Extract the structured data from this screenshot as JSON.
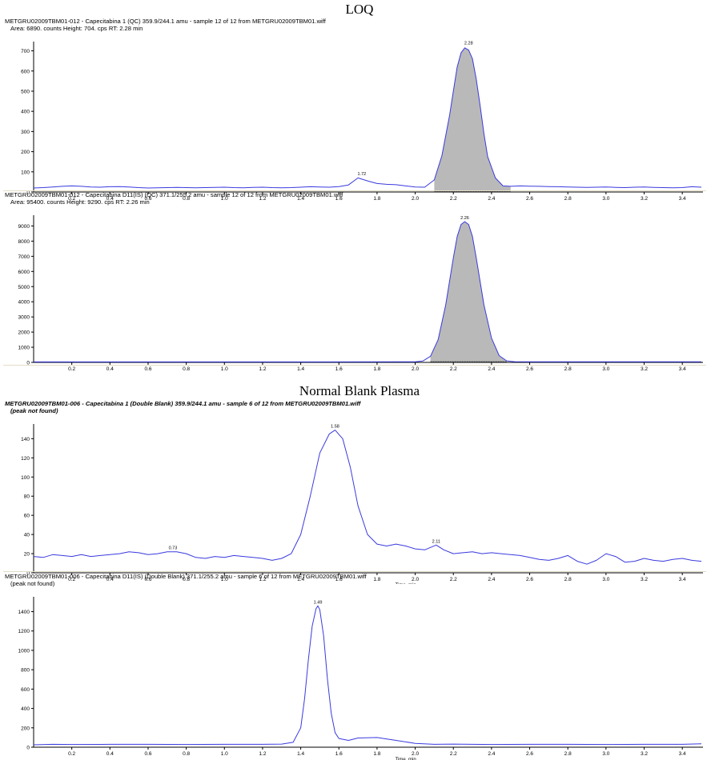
{
  "section_titles": {
    "top": "LOQ",
    "bottom": "Normal Blank Plasma"
  },
  "colors": {
    "trace": "#3a3adf",
    "peak_fill": "#b9b9b9",
    "axis": "#000000",
    "separator": "#e2ddc8"
  },
  "chart_data": [
    {
      "type": "line",
      "title": "METGRU02009TBM01-012 - Capecitabina 1 (QC) 359.9/244.1 amu - sample 12 of 12 from METGRU02009TBM01.wiff",
      "subtitle": "Area: 6890. counts  Height: 704. cps  RT: 2.28 min",
      "xlabel": "Time, min",
      "xlim": [
        0,
        3.5
      ],
      "ylim": [
        0,
        730
      ],
      "xticks": [
        "0.2",
        "0.4",
        "0.6",
        "0.8",
        "1.0",
        "1.2",
        "1.4",
        "1.6",
        "1.8",
        "2.0",
        "2.2",
        "2.4",
        "2.6",
        "2.8",
        "3.0",
        "3.2",
        "3.4"
      ],
      "yticks": [
        "0",
        "100",
        "200",
        "300",
        "400",
        "500",
        "600",
        "700"
      ],
      "peak_labels": [
        {
          "x": 1.72,
          "y": 72,
          "label": "1.72"
        },
        {
          "x": 2.28,
          "y": 720,
          "label": "2.28"
        }
      ],
      "filled_peak": {
        "x_start": 2.08,
        "x_end": 2.5
      },
      "series": [
        {
          "x": [
            0.0,
            0.05,
            0.1,
            0.15,
            0.2,
            0.25,
            0.3,
            0.35,
            0.4,
            0.45,
            0.5,
            0.55,
            0.6,
            0.65,
            0.7,
            0.75,
            0.8,
            0.85,
            0.9,
            0.95,
            1.0,
            1.05,
            1.1,
            1.15,
            1.2,
            1.25,
            1.3,
            1.35,
            1.4,
            1.45,
            1.5,
            1.55,
            1.6,
            1.65,
            1.7,
            1.75,
            1.8,
            1.85,
            1.9,
            1.95,
            2.0,
            2.05,
            2.1,
            2.14,
            2.18,
            2.2,
            2.22,
            2.24,
            2.26,
            2.28,
            2.3,
            2.32,
            2.34,
            2.36,
            2.38,
            2.42,
            2.46,
            2.5,
            2.55,
            2.6,
            2.65,
            2.7,
            2.75,
            2.8,
            2.85,
            2.9,
            2.95,
            3.0,
            3.05,
            3.1,
            3.15,
            3.2,
            3.25,
            3.3,
            3.35,
            3.4,
            3.45,
            3.5
          ],
          "y": [
            20,
            22,
            25,
            28,
            30,
            28,
            25,
            24,
            26,
            27,
            25,
            22,
            20,
            21,
            22,
            23,
            22,
            21,
            22,
            23,
            24,
            22,
            21,
            23,
            24,
            22,
            21,
            22,
            24,
            26,
            25,
            24,
            27,
            35,
            70,
            55,
            42,
            38,
            36,
            30,
            25,
            24,
            60,
            180,
            380,
            500,
            620,
            690,
            715,
            704,
            660,
            560,
            430,
            290,
            175,
            70,
            30,
            28,
            30,
            29,
            28,
            27,
            26,
            25,
            24,
            23,
            24,
            25,
            23,
            22,
            24,
            25,
            23,
            22,
            21,
            22,
            26,
            24
          ]
        }
      ]
    },
    {
      "type": "line",
      "title": "METGRU02009TBM01-012 - Capecitabina D11(IS) (QC) 371.1/255.2 amu - sample 12 of 12 from METGRU02009TBM01.wiff",
      "subtitle": "Area: 95400. counts  Height: 9290. cps  RT: 2.26 min",
      "xlabel": "Time, min",
      "xlim": [
        0,
        3.5
      ],
      "ylim": [
        0,
        9500
      ],
      "xticks": [
        "0.2",
        "0.4",
        "0.6",
        "0.8",
        "1.0",
        "1.2",
        "1.4",
        "1.6",
        "1.8",
        "2.0",
        "2.2",
        "2.4",
        "2.6",
        "2.8",
        "3.0",
        "3.2",
        "3.4"
      ],
      "yticks": [
        "0",
        "1000",
        "2000",
        "3000",
        "4000",
        "5000",
        "6000",
        "7000",
        "8000",
        "9000"
      ],
      "peak_labels": [
        {
          "x": 2.26,
          "y": 9290,
          "label": "2.26"
        }
      ],
      "filled_peak": {
        "x_start": 2.06,
        "x_end": 2.5
      },
      "series": [
        {
          "x": [
            0.0,
            0.5,
            1.0,
            1.5,
            1.9,
            2.0,
            2.04,
            2.08,
            2.12,
            2.16,
            2.2,
            2.22,
            2.24,
            2.26,
            2.28,
            2.3,
            2.32,
            2.36,
            2.4,
            2.44,
            2.48,
            2.52,
            2.6,
            3.0,
            3.5
          ],
          "y": [
            30,
            30,
            30,
            30,
            35,
            40,
            90,
            400,
            1500,
            3800,
            6900,
            8300,
            9100,
            9290,
            9100,
            8300,
            6900,
            3800,
            1600,
            450,
            100,
            50,
            40,
            35,
            35
          ]
        }
      ]
    },
    {
      "type": "line",
      "title": "METGRU02009TBM01-006 - Capecitabina 1 (Double Blank) 359.9/244.1 amu - sample 6 of 12 from METGRU02009TBM01.wiff",
      "subtitle": "(peak not found)",
      "xlabel": "Time, min",
      "xlim": [
        0,
        3.5
      ],
      "ylim": [
        0,
        152
      ],
      "xticks": [
        "0.2",
        "0.4",
        "0.6",
        "0.8",
        "1.0",
        "1.2",
        "1.4",
        "1.6",
        "1.8",
        "2.0",
        "2.2",
        "2.4",
        "2.6",
        "2.8",
        "3.0",
        "3.2",
        "3.4"
      ],
      "yticks": [
        "0",
        "20",
        "40",
        "60",
        "80",
        "100",
        "120",
        "140"
      ],
      "peak_labels": [
        {
          "x": 0.73,
          "y": 22,
          "label": "0.73"
        },
        {
          "x": 1.58,
          "y": 149,
          "label": "1.58"
        },
        {
          "x": 2.11,
          "y": 29,
          "label": "2.11"
        }
      ],
      "series": [
        {
          "x": [
            0.0,
            0.05,
            0.1,
            0.15,
            0.2,
            0.25,
            0.3,
            0.35,
            0.4,
            0.45,
            0.5,
            0.55,
            0.6,
            0.65,
            0.7,
            0.75,
            0.8,
            0.85,
            0.9,
            0.95,
            1.0,
            1.05,
            1.1,
            1.15,
            1.2,
            1.25,
            1.3,
            1.35,
            1.4,
            1.45,
            1.5,
            1.55,
            1.58,
            1.62,
            1.66,
            1.7,
            1.75,
            1.8,
            1.85,
            1.9,
            1.95,
            2.0,
            2.05,
            2.11,
            2.15,
            2.2,
            2.25,
            2.3,
            2.35,
            2.4,
            2.45,
            2.5,
            2.55,
            2.6,
            2.65,
            2.7,
            2.75,
            2.8,
            2.85,
            2.9,
            2.95,
            3.0,
            3.05,
            3.1,
            3.15,
            3.2,
            3.25,
            3.3,
            3.35,
            3.4,
            3.45,
            3.5
          ],
          "y": [
            17,
            16,
            19,
            18,
            17,
            19,
            17,
            18,
            19,
            20,
            22,
            21,
            19,
            20,
            22,
            22,
            20,
            16,
            15,
            17,
            16,
            18,
            17,
            16,
            15,
            13,
            15,
            20,
            40,
            80,
            125,
            145,
            149,
            140,
            110,
            70,
            40,
            30,
            28,
            30,
            28,
            25,
            24,
            29,
            24,
            20,
            21,
            22,
            20,
            21,
            20,
            19,
            18,
            16,
            14,
            13,
            15,
            18,
            12,
            9,
            13,
            20,
            17,
            11,
            12,
            15,
            13,
            12,
            14,
            15,
            13,
            12
          ]
        }
      ]
    },
    {
      "type": "line",
      "title": "METGRU02009TBM01-006 - Capecitabina D11(IS) (Double Blank) 371.1/255.2 amu - sample 6 of 12 from METGRU02009TBM01.wiff",
      "subtitle": "(peak not found)",
      "xlabel": "Time, min",
      "xlim": [
        0,
        3.5
      ],
      "ylim": [
        0,
        1520
      ],
      "xticks": [
        "0.2",
        "0.4",
        "0.6",
        "0.8",
        "1.0",
        "1.2",
        "1.4",
        "1.6",
        "1.8",
        "2.0",
        "2.2",
        "2.4",
        "2.6",
        "2.8",
        "3.0",
        "3.2",
        "3.4"
      ],
      "yticks": [
        "0",
        "200",
        "400",
        "600",
        "800",
        "1000",
        "1200",
        "1400"
      ],
      "peak_labels": [
        {
          "x": 1.49,
          "y": 1460,
          "label": "1.49"
        }
      ],
      "series": [
        {
          "x": [
            0.0,
            0.1,
            0.2,
            0.4,
            0.6,
            0.8,
            1.0,
            1.2,
            1.3,
            1.36,
            1.4,
            1.42,
            1.44,
            1.46,
            1.48,
            1.49,
            1.5,
            1.52,
            1.54,
            1.56,
            1.58,
            1.6,
            1.65,
            1.7,
            1.8,
            1.9,
            2.0,
            2.1,
            2.2,
            2.4,
            2.6,
            2.8,
            3.0,
            3.2,
            3.4,
            3.5
          ],
          "y": [
            25,
            30,
            28,
            30,
            30,
            28,
            30,
            30,
            32,
            50,
            200,
            500,
            900,
            1250,
            1430,
            1460,
            1420,
            1150,
            700,
            350,
            150,
            90,
            70,
            95,
            100,
            70,
            40,
            30,
            32,
            28,
            30,
            30,
            28,
            30,
            30,
            35
          ]
        }
      ]
    }
  ]
}
